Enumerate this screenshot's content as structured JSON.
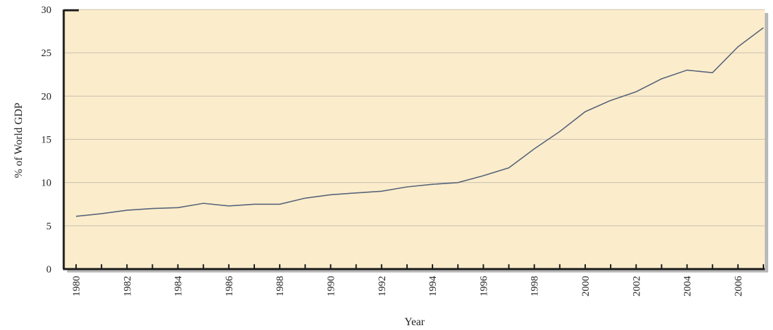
{
  "chart_data": {
    "type": "line",
    "title": "",
    "xlabel": "Year",
    "ylabel": "% of World GDP",
    "xlim": [
      1980,
      2007
    ],
    "ylim": [
      0,
      30
    ],
    "x_tick_labels": [
      "1980",
      "1982",
      "1984",
      "1986",
      "1988",
      "1990",
      "1992",
      "1994",
      "1996",
      "1998",
      "2000",
      "2002",
      "2004",
      "2006"
    ],
    "y_tick_labels": [
      "0",
      "5",
      "10",
      "15",
      "20",
      "25",
      "30"
    ],
    "grid": "horizontal",
    "legend": "none",
    "colors": {
      "plot_background": "#fbeccb",
      "line": "#55637a",
      "axis": "#1a1a1a",
      "grid": "#c8c0b0",
      "shadow": "#b9b9b9"
    },
    "series": [
      {
        "x": [
          1980,
          1981,
          1982,
          1983,
          1984,
          1985,
          1986,
          1987,
          1988,
          1989,
          1990,
          1991,
          1992,
          1993,
          1994,
          1995,
          1996,
          1997,
          1998,
          1999,
          2000,
          2001,
          2002,
          2003,
          2004,
          2005,
          2006,
          2007
        ],
        "values": [
          6.1,
          6.4,
          6.8,
          7.0,
          7.1,
          7.6,
          7.3,
          7.5,
          7.5,
          8.2,
          8.6,
          8.8,
          9.0,
          9.5,
          9.8,
          10.0,
          10.8,
          11.7,
          13.9,
          15.9,
          18.2,
          19.5,
          20.5,
          22.0,
          23.0,
          22.7,
          25.7,
          27.9
        ]
      }
    ]
  }
}
